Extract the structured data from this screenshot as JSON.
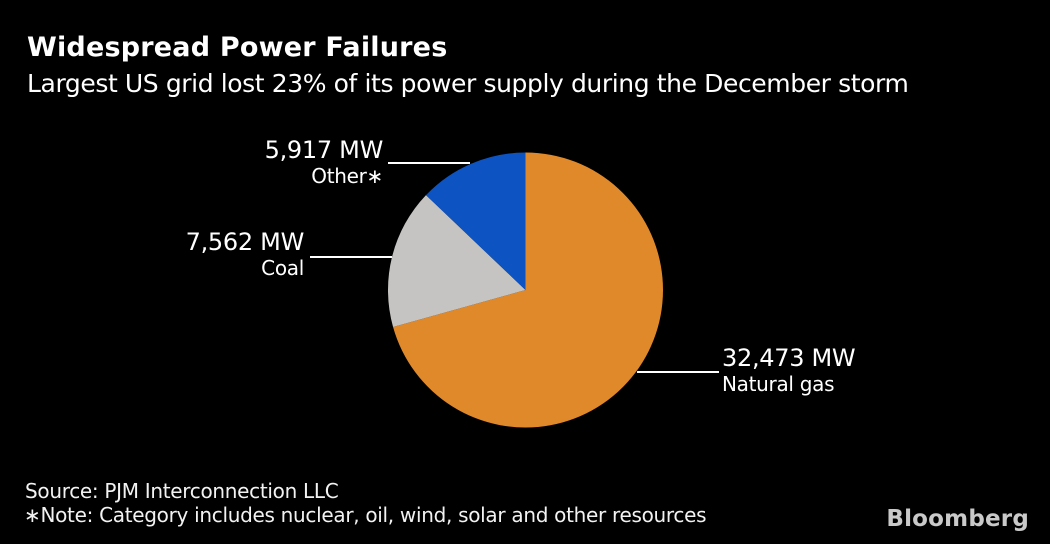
{
  "branding": {
    "logo": "Bloomberg"
  },
  "chart_data": {
    "type": "pie",
    "title": "Widespread Power Failures",
    "subtitle": "Largest US grid lost 23% of its power supply during the December storm",
    "unit": "MW",
    "direction": "clockwise",
    "start_angle_deg": 0,
    "legend_position": "none",
    "background": "#000000",
    "text_color": "#FFFFFF",
    "slices": [
      {
        "name": "natural-gas",
        "label": "Natural gas",
        "value": 32473,
        "display": "32,473 MW",
        "color": "#E0892A"
      },
      {
        "name": "coal",
        "label": "Coal",
        "value": 7562,
        "display": "7,562 MW",
        "color": "#C5C4C2"
      },
      {
        "name": "other",
        "label": "Other∗",
        "value": 5917,
        "display": "5,917 MW",
        "color": "#0D53C2"
      }
    ],
    "source": "Source: PJM Interconnection LLC",
    "note": "∗Note: Category includes nuclear, oil, wind, solar and other resources"
  }
}
